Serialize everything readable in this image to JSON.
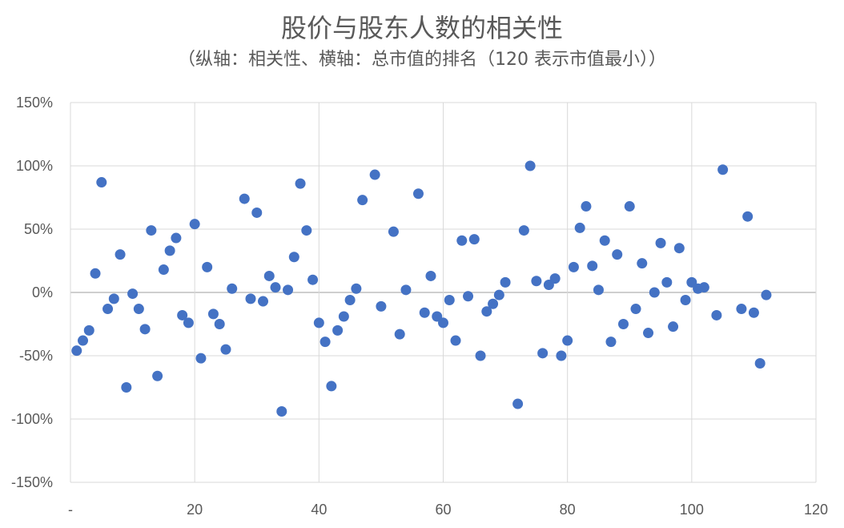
{
  "chart_data": {
    "type": "scatter",
    "title": "股价与股东人数的相关性",
    "subtitle": "（纵轴：相关性、横轴：总市值的排名（120 表示市值最小））",
    "xlim": [
      0,
      120
    ],
    "ylim": [
      -150,
      150
    ],
    "x_ticks": [
      {
        "v": 0,
        "label": "-"
      },
      {
        "v": 20,
        "label": "20"
      },
      {
        "v": 40,
        "label": "40"
      },
      {
        "v": 60,
        "label": "60"
      },
      {
        "v": 80,
        "label": "80"
      },
      {
        "v": 100,
        "label": "100"
      },
      {
        "v": 120,
        "label": "120"
      }
    ],
    "y_ticks": [
      {
        "v": 150,
        "label": "150%"
      },
      {
        "v": 100,
        "label": "100%"
      },
      {
        "v": 50,
        "label": "50%"
      },
      {
        "v": 0,
        "label": "0%"
      },
      {
        "v": -50,
        "label": "-50%"
      },
      {
        "v": -100,
        "label": "-100%"
      },
      {
        "v": -150,
        "label": "-150%"
      }
    ],
    "grid": true,
    "marker_color": "#4472C4",
    "points": [
      [
        1,
        -46
      ],
      [
        2,
        -38
      ],
      [
        3,
        -30
      ],
      [
        4,
        15
      ],
      [
        5,
        87
      ],
      [
        6,
        -13
      ],
      [
        7,
        -5
      ],
      [
        8,
        30
      ],
      [
        9,
        -75
      ],
      [
        10,
        -1
      ],
      [
        11,
        -13
      ],
      [
        12,
        -29
      ],
      [
        13,
        49
      ],
      [
        14,
        -66
      ],
      [
        15,
        18
      ],
      [
        16,
        33
      ],
      [
        17,
        43
      ],
      [
        18,
        -18
      ],
      [
        19,
        -24
      ],
      [
        20,
        54
      ],
      [
        21,
        -52
      ],
      [
        22,
        20
      ],
      [
        23,
        -17
      ],
      [
        24,
        -25
      ],
      [
        25,
        -45
      ],
      [
        26,
        3
      ],
      [
        28,
        74
      ],
      [
        29,
        -5
      ],
      [
        30,
        63
      ],
      [
        31,
        -7
      ],
      [
        32,
        13
      ],
      [
        33,
        4
      ],
      [
        34,
        -94
      ],
      [
        35,
        2
      ],
      [
        36,
        28
      ],
      [
        37,
        86
      ],
      [
        38,
        49
      ],
      [
        39,
        10
      ],
      [
        40,
        -24
      ],
      [
        41,
        -39
      ],
      [
        42,
        -74
      ],
      [
        43,
        -30
      ],
      [
        44,
        -19
      ],
      [
        45,
        -6
      ],
      [
        46,
        3
      ],
      [
        47,
        73
      ],
      [
        49,
        93
      ],
      [
        50,
        -11
      ],
      [
        52,
        48
      ],
      [
        53,
        -33
      ],
      [
        54,
        2
      ],
      [
        56,
        78
      ],
      [
        57,
        -16
      ],
      [
        58,
        13
      ],
      [
        59,
        -19
      ],
      [
        60,
        -24
      ],
      [
        61,
        -6
      ],
      [
        62,
        -38
      ],
      [
        63,
        41
      ],
      [
        64,
        -3
      ],
      [
        65,
        42
      ],
      [
        66,
        -50
      ],
      [
        67,
        -15
      ],
      [
        68,
        -9
      ],
      [
        69,
        -2
      ],
      [
        70,
        8
      ],
      [
        72,
        -88
      ],
      [
        73,
        49
      ],
      [
        74,
        100
      ],
      [
        75,
        9
      ],
      [
        76,
        -48
      ],
      [
        77,
        6
      ],
      [
        78,
        11
      ],
      [
        79,
        -50
      ],
      [
        80,
        -38
      ],
      [
        81,
        20
      ],
      [
        82,
        51
      ],
      [
        83,
        68
      ],
      [
        84,
        21
      ],
      [
        85,
        2
      ],
      [
        86,
        41
      ],
      [
        87,
        -39
      ],
      [
        88,
        30
      ],
      [
        89,
        -25
      ],
      [
        90,
        68
      ],
      [
        91,
        -13
      ],
      [
        92,
        23
      ],
      [
        93,
        -32
      ],
      [
        94,
        0
      ],
      [
        95,
        39
      ],
      [
        96,
        8
      ],
      [
        97,
        -27
      ],
      [
        98,
        35
      ],
      [
        99,
        -6
      ],
      [
        100,
        8
      ],
      [
        101,
        3
      ],
      [
        102,
        4
      ],
      [
        104,
        -18
      ],
      [
        105,
        97
      ],
      [
        108,
        -13
      ],
      [
        109,
        60
      ],
      [
        110,
        -16
      ],
      [
        111,
        -56
      ],
      [
        112,
        -2
      ]
    ]
  }
}
